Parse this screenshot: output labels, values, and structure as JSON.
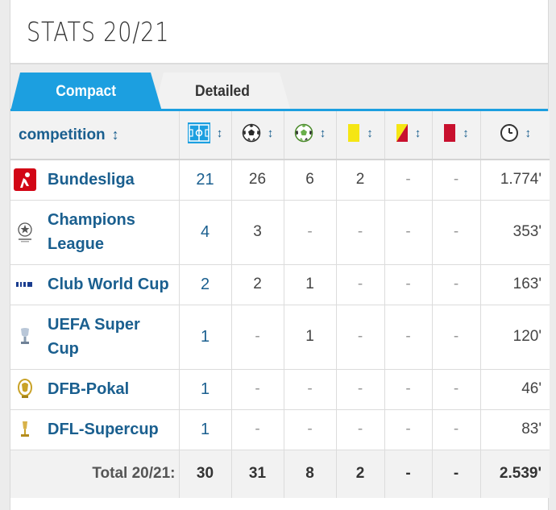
{
  "title": "STATS 20/21",
  "tabs": {
    "compact": "Compact",
    "detailed": "Detailed"
  },
  "header": {
    "competition": "competition",
    "sort_symbol": "↕",
    "icons": [
      "pitch-icon",
      "football-icon",
      "assist-ball-icon",
      "yellow-card-icon",
      "yellow-red-card-icon",
      "red-card-icon",
      "clock-icon"
    ]
  },
  "colors": {
    "accent": "#1c9fe0",
    "link": "#1a5f8f",
    "yellow": "#f5e614",
    "red": "#c8102e"
  },
  "rows": [
    {
      "competition": "Bundesliga",
      "logo": "bundesliga-logo",
      "apps": "21",
      "goals": "26",
      "assists": "6",
      "yellow": "2",
      "yellow_red": "-",
      "red": "-",
      "minutes": "1.774'"
    },
    {
      "competition": "Champions League",
      "logo": "champions-league-logo",
      "apps": "4",
      "goals": "3",
      "assists": "-",
      "yellow": "-",
      "yellow_red": "-",
      "red": "-",
      "minutes": "353'"
    },
    {
      "competition": "Club World Cup",
      "logo": "fifa-logo",
      "apps": "2",
      "goals": "2",
      "assists": "1",
      "yellow": "-",
      "yellow_red": "-",
      "red": "-",
      "minutes": "163'"
    },
    {
      "competition": "UEFA Super Cup",
      "logo": "uefa-super-cup-logo",
      "apps": "1",
      "goals": "-",
      "assists": "1",
      "yellow": "-",
      "yellow_red": "-",
      "red": "-",
      "minutes": "120'"
    },
    {
      "competition": "DFB-Pokal",
      "logo": "dfb-pokal-logo",
      "apps": "1",
      "goals": "-",
      "assists": "-",
      "yellow": "-",
      "yellow_red": "-",
      "red": "-",
      "minutes": "46'"
    },
    {
      "competition": "DFL-Supercup",
      "logo": "dfl-supercup-logo",
      "apps": "1",
      "goals": "-",
      "assists": "-",
      "yellow": "-",
      "yellow_red": "-",
      "red": "-",
      "minutes": "83'"
    }
  ],
  "total": {
    "label": "Total 20/21:",
    "apps": "30",
    "goals": "31",
    "assists": "8",
    "yellow": "2",
    "yellow_red": "-",
    "red": "-",
    "minutes": "2.539'"
  }
}
